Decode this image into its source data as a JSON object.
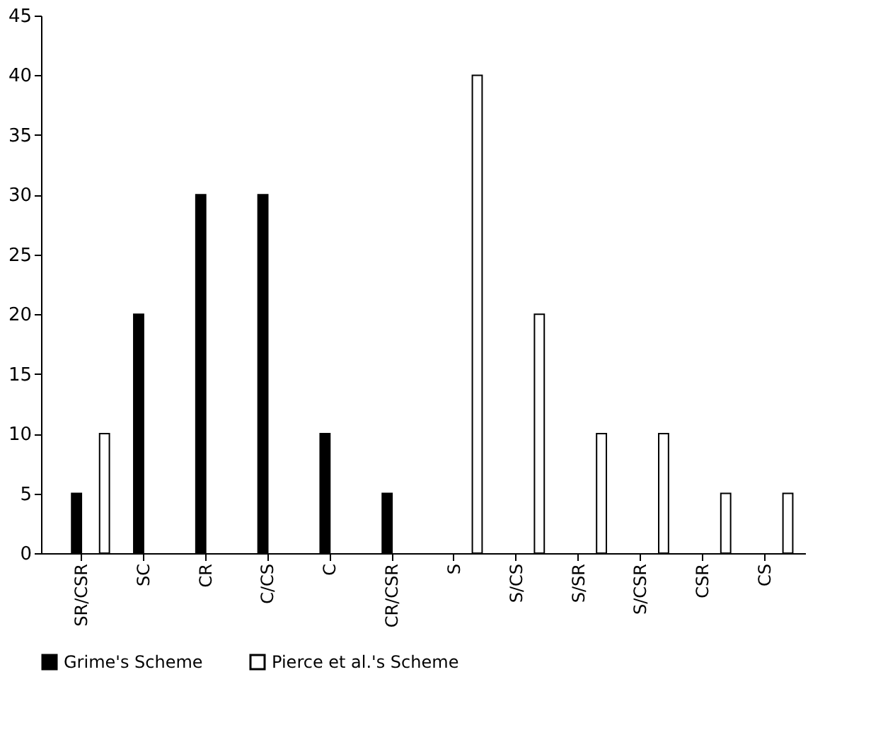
{
  "chart_data": {
    "type": "bar",
    "categories": [
      "SR/CSR",
      "SC",
      "CR",
      "C/CS",
      "C",
      "CR/CSR",
      "S",
      "S/CS",
      "S/SR",
      "S/CSR",
      "CSR",
      "CS"
    ],
    "series": [
      {
        "name": "Grime's Scheme",
        "color": "#000000",
        "values": [
          5,
          20,
          30,
          30,
          10,
          5,
          null,
          null,
          null,
          null,
          null,
          null
        ]
      },
      {
        "name": "Pierce et al.'s Scheme",
        "color": "#ffffff",
        "values": [
          10,
          null,
          null,
          null,
          null,
          null,
          40,
          20,
          10,
          10,
          5,
          5
        ]
      }
    ],
    "ylim": [
      0,
      45
    ],
    "yticks": [
      0,
      5,
      10,
      15,
      20,
      25,
      30,
      35,
      40,
      45
    ],
    "grid": false,
    "legend": "bottom"
  }
}
